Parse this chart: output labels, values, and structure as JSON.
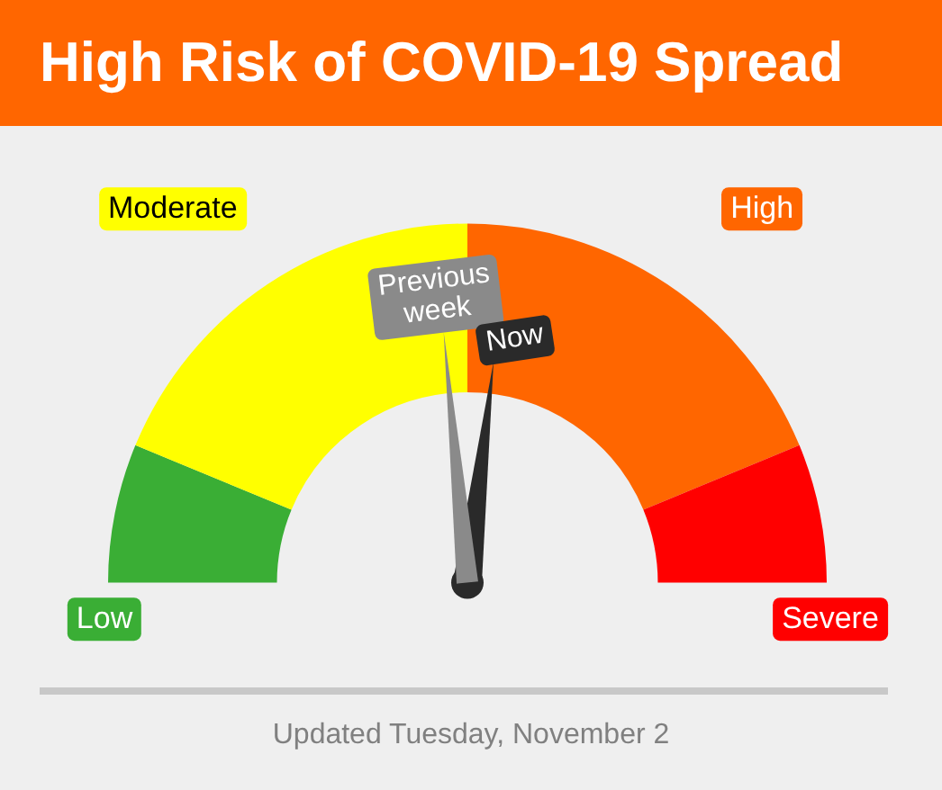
{
  "chart_data": {
    "type": "donut",
    "title": "High Risk of COVID-19 Spread",
    "categories": [
      "Low",
      "Moderate",
      "High",
      "Severe"
    ],
    "values": [
      12.5,
      37.5,
      37.5,
      12.5
    ],
    "colors": [
      "#3aae35",
      "#ffff00",
      "#ff6600",
      "#ff0000"
    ],
    "needle": "High",
    "annotations": [
      "Previous week",
      "Now",
      "Updated Tuesday, November 2"
    ]
  }
}
